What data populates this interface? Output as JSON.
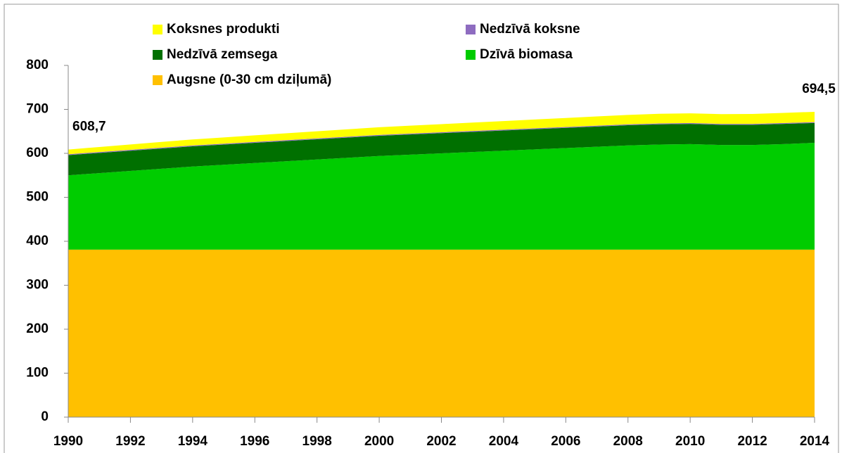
{
  "chart_data": {
    "type": "stacked_area",
    "x": [
      1990,
      1991,
      1992,
      1993,
      1994,
      1995,
      1996,
      1997,
      1998,
      1999,
      2000,
      2001,
      2002,
      2003,
      2004,
      2005,
      2006,
      2007,
      2008,
      2009,
      2010,
      2011,
      2012,
      2013,
      2014
    ],
    "series": [
      {
        "name": "Augsne (0-30 cm dziļumā)",
        "color": "#ffc000",
        "values": [
          381,
          381,
          381,
          381,
          381,
          381,
          381,
          381,
          381,
          381,
          381,
          381,
          381,
          381,
          381,
          381,
          381,
          381,
          381,
          381,
          381,
          381,
          381,
          381,
          381
        ]
      },
      {
        "name": "Dzīvā biomasa",
        "color": "#00cc00",
        "values": [
          169,
          174,
          179,
          184,
          189,
          193,
          197,
          201,
          205,
          209,
          213,
          216,
          219,
          222,
          225,
          228,
          231,
          234,
          237,
          239,
          240,
          238,
          238,
          240,
          243
        ]
      },
      {
        "name": "Nedzīvā zemsega",
        "color": "#007000",
        "values": [
          46,
          46,
          46,
          46,
          46,
          46,
          46,
          46,
          46,
          46,
          46,
          46,
          46,
          46,
          46,
          46,
          46,
          46,
          46,
          46,
          46,
          46,
          46,
          46,
          45
        ]
      },
      {
        "name": "Nedzīvā koksne",
        "color": "#8e6cc0",
        "values": [
          2,
          2,
          2,
          2,
          2,
          2,
          2,
          2,
          2,
          2,
          2,
          2,
          2,
          2,
          2,
          2,
          2,
          2,
          2,
          2,
          2,
          2,
          2,
          2,
          2
        ]
      },
      {
        "name": "Koksnes produkti",
        "color": "#ffff00",
        "values": [
          10.7,
          11.5,
          12.2,
          13,
          13.7,
          14.3,
          15,
          15.6,
          16.2,
          16.8,
          17.4,
          18,
          18.5,
          19,
          19.5,
          20,
          20.5,
          21,
          21.5,
          22,
          22,
          22.3,
          22.6,
          23,
          23.5
        ]
      }
    ],
    "annotations": [
      {
        "text": "608,7",
        "x": 1990,
        "value": 608.7
      },
      {
        "text": "694,5",
        "x": 2014,
        "value": 694.5
      }
    ],
    "xlim": [
      1990,
      2014
    ],
    "xticks": [
      1990,
      1992,
      1994,
      1996,
      1998,
      2000,
      2002,
      2004,
      2006,
      2008,
      2010,
      2012,
      2014
    ],
    "ylim": [
      0,
      800
    ],
    "yticks": [
      0,
      100,
      200,
      300,
      400,
      500,
      600,
      700,
      800
    ]
  }
}
